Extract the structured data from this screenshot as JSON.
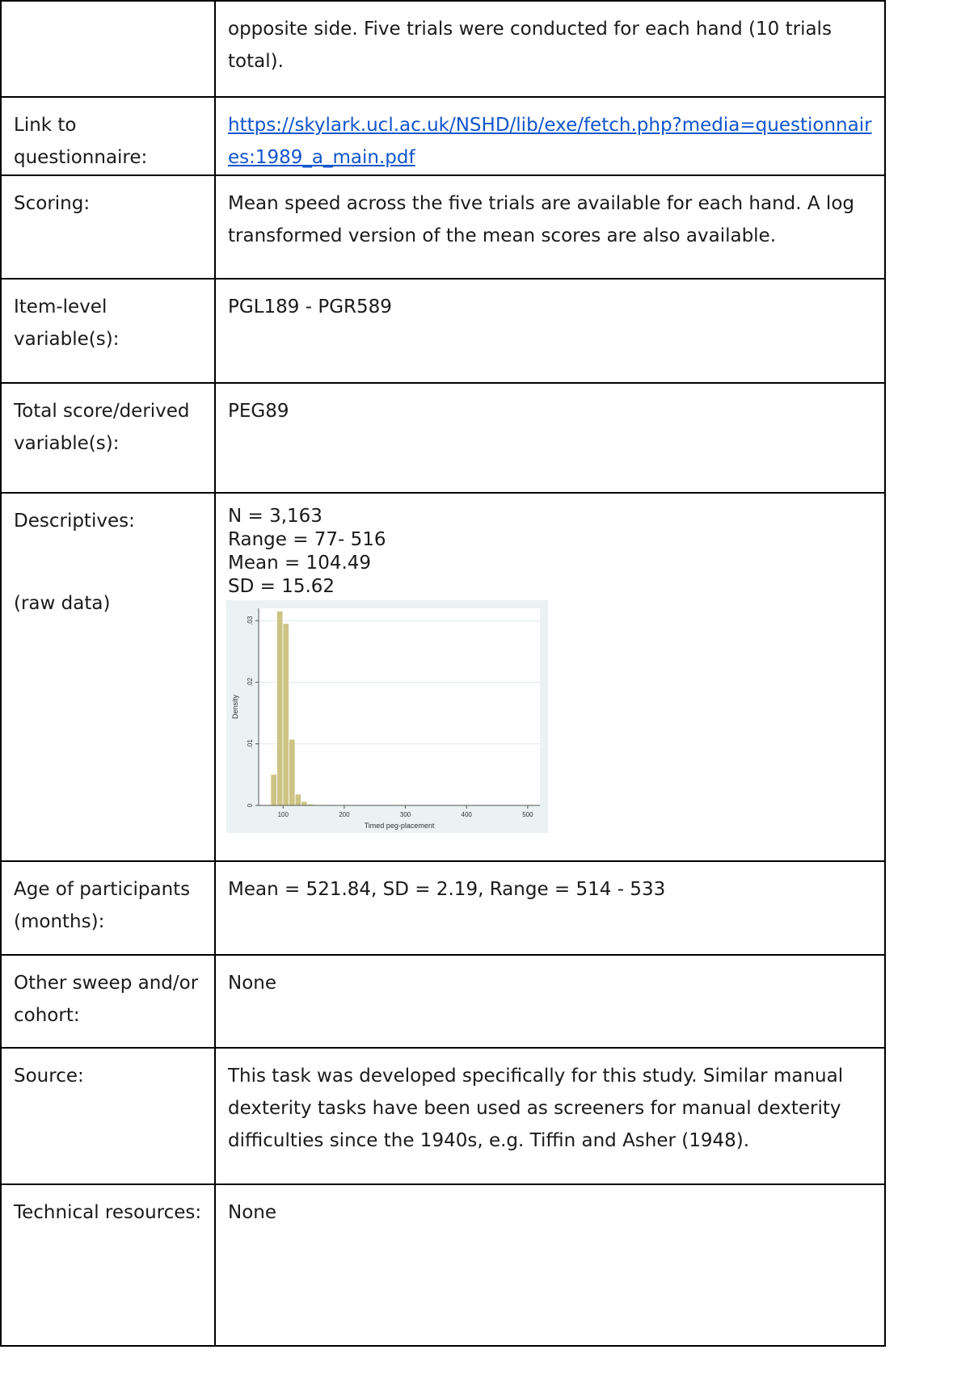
{
  "rows": [
    {
      "label": "",
      "value": "opposite side. Five trials were conducted for each hand (10 trials total)."
    },
    {
      "label": "Link to questionnaire:",
      "link": "https://skylark.ucl.ac.uk/NSHD/lib/exe/fetch.php?media=questionnaires:1989_a_main.pdf"
    },
    {
      "label": "Scoring:",
      "value": "Mean speed across the five trials are available for each hand. A log transformed version of the mean scores are also available."
    },
    {
      "label": "Item-level variable(s):",
      "value": "PGL189 - PGR589"
    },
    {
      "label": "Total score/derived variable(s):",
      "value": "PEG89"
    },
    {
      "label": "Descriptives:",
      "sublabel": "(raw data)",
      "lines": [
        "N = 3,163",
        "Range = 77- 516",
        "Mean = 104.49",
        "SD = 15.62"
      ]
    },
    {
      "label": "Age of participants (months):",
      "value": "Mean = 521.84, SD = 2.19, Range = 514 - 533"
    },
    {
      "label": "Other sweep and/or cohort:",
      "value": "None"
    },
    {
      "label": "Source:",
      "value": "This task was developed specifically for this study. Similar manual dexterity tasks have been used as screeners for manual dexterity difficulties since the 1940s, e.g. Tiffin and Asher (1948)."
    },
    {
      "label": "Technical resources:",
      "value": "None"
    }
  ],
  "chart_data": {
    "type": "bar",
    "xlabel": "Timed peg-placement",
    "ylabel": "Density",
    "xlim": [
      60,
      520
    ],
    "ylim": [
      0,
      0.032
    ],
    "xticks": [
      "100",
      "200",
      "300",
      "400",
      "500"
    ],
    "yticks": [
      "0",
      ".01",
      ".02",
      ".03"
    ],
    "bin_width": 10,
    "bins": [
      {
        "x": 80,
        "density": 0.005
      },
      {
        "x": 90,
        "density": 0.0315
      },
      {
        "x": 100,
        "density": 0.0295
      },
      {
        "x": 110,
        "density": 0.0107
      },
      {
        "x": 120,
        "density": 0.0018
      },
      {
        "x": 130,
        "density": 0.0006
      },
      {
        "x": 140,
        "density": 0.0002
      },
      {
        "x": 150,
        "density": 0.0001
      },
      {
        "x": 160,
        "density": 0.0001
      },
      {
        "x": 200,
        "density": 0.0001
      },
      {
        "x": 280,
        "density": 0.0001
      },
      {
        "x": 390,
        "density": 0.0001
      },
      {
        "x": 500,
        "density": 0.0001
      }
    ],
    "colors": {
      "bar": "#cdc384",
      "background": "#eaf2f3",
      "plot": "#ffffff",
      "grid": "#dfe7e9"
    }
  }
}
